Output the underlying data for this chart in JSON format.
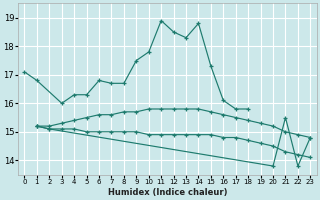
{
  "xlabel": "Humidex (Indice chaleur)",
  "bg_color": "#cce8ea",
  "grid_color": "#ffffff",
  "line_color": "#1e7b6e",
  "ylim": [
    13.5,
    19.5
  ],
  "xlim": [
    -0.5,
    23.5
  ],
  "yticks": [
    14,
    15,
    16,
    17,
    18,
    19
  ],
  "xticks": [
    0,
    1,
    2,
    3,
    4,
    5,
    6,
    7,
    8,
    9,
    10,
    11,
    12,
    13,
    14,
    15,
    16,
    17,
    18,
    19,
    20,
    21,
    22,
    23
  ],
  "lines": [
    {
      "x": [
        0,
        1,
        3,
        4,
        5,
        6,
        7,
        8,
        9,
        10,
        11,
        12,
        13,
        14,
        15,
        16,
        17,
        18
      ],
      "y": [
        17.1,
        16.8,
        16.0,
        16.3,
        16.3,
        16.8,
        16.7,
        16.7,
        17.5,
        17.8,
        18.9,
        18.5,
        18.3,
        18.8,
        17.3,
        16.1,
        15.8,
        15.8
      ]
    },
    {
      "x": [
        1,
        2,
        3,
        4,
        5,
        6,
        7,
        8,
        9,
        10,
        11,
        12,
        13,
        14,
        15,
        16,
        17,
        18,
        19,
        20,
        21,
        22,
        23
      ],
      "y": [
        15.2,
        15.2,
        15.3,
        15.4,
        15.5,
        15.6,
        15.6,
        15.7,
        15.7,
        15.8,
        15.8,
        15.8,
        15.8,
        15.8,
        15.7,
        15.6,
        15.5,
        15.4,
        15.3,
        15.2,
        15.0,
        14.9,
        14.8
      ]
    },
    {
      "x": [
        1,
        2,
        3,
        4,
        5,
        6,
        7,
        8,
        9,
        10,
        11,
        12,
        13,
        14,
        15,
        16,
        17,
        18,
        19,
        20,
        21,
        22,
        23
      ],
      "y": [
        15.2,
        15.1,
        15.1,
        15.1,
        15.0,
        15.0,
        15.0,
        15.0,
        15.0,
        14.9,
        14.9,
        14.9,
        14.9,
        14.9,
        14.9,
        14.8,
        14.8,
        14.7,
        14.6,
        14.5,
        14.3,
        14.2,
        14.1
      ]
    },
    {
      "x": [
        1,
        2,
        20,
        21,
        22,
        23
      ],
      "y": [
        15.2,
        15.1,
        13.8,
        15.5,
        13.8,
        14.8
      ]
    }
  ]
}
